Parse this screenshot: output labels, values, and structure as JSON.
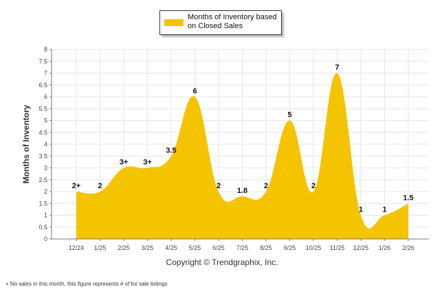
{
  "legend": {
    "label_line1": "Months of Inventory based",
    "label_line2": "on Closed Sales"
  },
  "copyright": "Copyright © Trendgraphix, Inc.",
  "footnote": "+ No sales in this month, this figure represents # of for sale listings",
  "colors": {
    "fill": "#f5c400",
    "grid": "#e6e6e6",
    "axis": "#777777"
  },
  "chart_data": {
    "type": "area",
    "ylabel": "Months of Inventory",
    "xlabel": "",
    "ylim": [
      0,
      8
    ],
    "ytick_step": 0.5,
    "yticks": [
      "0",
      "0.5",
      "1",
      "1.5",
      "2",
      "2.5",
      "3",
      "3.5",
      "4",
      "4.5",
      "5",
      "5.5",
      "6",
      "6.5",
      "7",
      "7.5",
      "8"
    ],
    "categories": [
      "12/24",
      "1/25",
      "2/25",
      "3/25",
      "4/25",
      "5/25",
      "6/25",
      "7/25",
      "8/25",
      "9/25",
      "10/25",
      "11/25",
      "12/25",
      "1/26",
      "2/26"
    ],
    "values": [
      2,
      2,
      3,
      3,
      3.5,
      6,
      2,
      1.8,
      2,
      5,
      2,
      7,
      1,
      1,
      1.5
    ],
    "data_labels": [
      "2+",
      "2",
      "3+",
      "3+",
      "3.5",
      "6",
      "2",
      "1.8",
      "2",
      "5",
      "2",
      "7",
      "1",
      "1",
      "1.5"
    ]
  }
}
